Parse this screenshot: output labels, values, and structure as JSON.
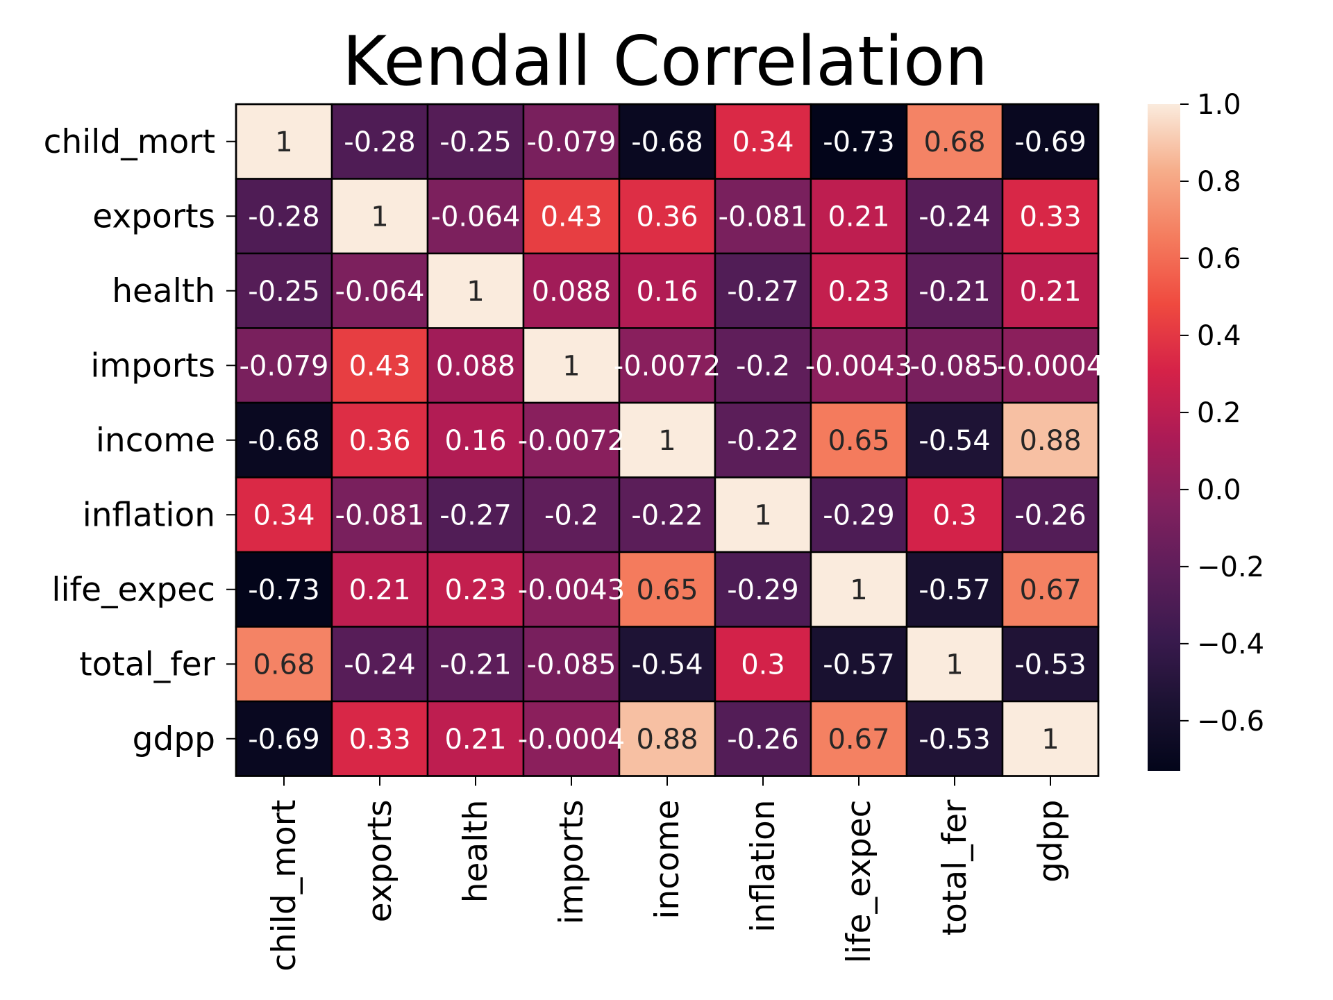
{
  "chart_data": {
    "type": "heatmap",
    "title": "Kendall Correlation",
    "rows": [
      "child_mort",
      "exports",
      "health",
      "imports",
      "income",
      "inflation",
      "life_expec",
      "total_fer",
      "gdpp"
    ],
    "cols": [
      "child_mort",
      "exports",
      "health",
      "imports",
      "income",
      "inflation",
      "life_expec",
      "total_fer",
      "gdpp"
    ],
    "values": [
      [
        1,
        -0.28,
        -0.25,
        -0.079,
        -0.68,
        0.34,
        -0.73,
        0.68,
        -0.69
      ],
      [
        -0.28,
        1,
        -0.064,
        0.43,
        0.36,
        -0.081,
        0.21,
        -0.24,
        0.33
      ],
      [
        -0.25,
        -0.064,
        1,
        0.088,
        0.16,
        -0.27,
        0.23,
        -0.21,
        0.21
      ],
      [
        -0.079,
        0.43,
        0.088,
        1,
        -0.0072,
        -0.2,
        -0.0043,
        -0.085,
        -0.0004
      ],
      [
        -0.68,
        0.36,
        0.16,
        -0.0072,
        1,
        -0.22,
        0.65,
        -0.54,
        0.88
      ],
      [
        0.34,
        -0.081,
        -0.27,
        -0.2,
        -0.22,
        1,
        -0.29,
        0.3,
        -0.26
      ],
      [
        -0.73,
        0.21,
        0.23,
        -0.0043,
        0.65,
        -0.29,
        1,
        -0.57,
        0.67
      ],
      [
        0.68,
        -0.24,
        -0.21,
        -0.085,
        -0.54,
        0.3,
        -0.57,
        1,
        -0.53
      ],
      [
        -0.69,
        0.33,
        0.21,
        -0.0004,
        0.88,
        -0.26,
        0.67,
        -0.53,
        1
      ]
    ],
    "annotations": [
      [
        "1",
        "-0.28",
        "-0.25",
        "-0.079",
        "-0.68",
        "0.34",
        "-0.73",
        "0.68",
        "-0.69"
      ],
      [
        "-0.28",
        "1",
        "-0.064",
        "0.43",
        "0.36",
        "-0.081",
        "0.21",
        "-0.24",
        "0.33"
      ],
      [
        "-0.25",
        "-0.064",
        "1",
        "0.088",
        "0.16",
        "-0.27",
        "0.23",
        "-0.21",
        "0.21"
      ],
      [
        "-0.079",
        "0.43",
        "0.088",
        "1",
        "-0.0072",
        "-0.2",
        "-0.0043",
        "-0.085",
        "-0.0004"
      ],
      [
        "-0.68",
        "0.36",
        "0.16",
        "-0.0072",
        "1",
        "-0.22",
        "0.65",
        "-0.54",
        "0.88"
      ],
      [
        "0.34",
        "-0.081",
        "-0.27",
        "-0.2",
        "-0.22",
        "1",
        "-0.29",
        "0.3",
        "-0.26"
      ],
      [
        "-0.73",
        "0.21",
        "0.23",
        "-0.0043",
        "0.65",
        "-0.29",
        "1",
        "-0.57",
        "0.67"
      ],
      [
        "0.68",
        "-0.24",
        "-0.21",
        "-0.085",
        "-0.54",
        "0.3",
        "-0.57",
        "1",
        "-0.53"
      ],
      [
        "-0.69",
        "0.33",
        "0.21",
        "-0.0004",
        "0.88",
        "-0.26",
        "0.67",
        "-0.53",
        "1"
      ]
    ],
    "colorbar": {
      "colormap": "rocket",
      "vmin": -0.73,
      "vmax": 1.0,
      "ticks": [
        1.0,
        0.8,
        0.6,
        0.4,
        0.2,
        0.0,
        -0.2,
        -0.4,
        -0.6
      ],
      "tick_labels": [
        "1.0",
        "0.8",
        "0.6",
        "0.4",
        "0.2",
        "0.0",
        "−0.2",
        "−0.4",
        "−0.6"
      ]
    },
    "cell_border_color": "#000000",
    "grid": false,
    "legend": "colorbar-right"
  }
}
